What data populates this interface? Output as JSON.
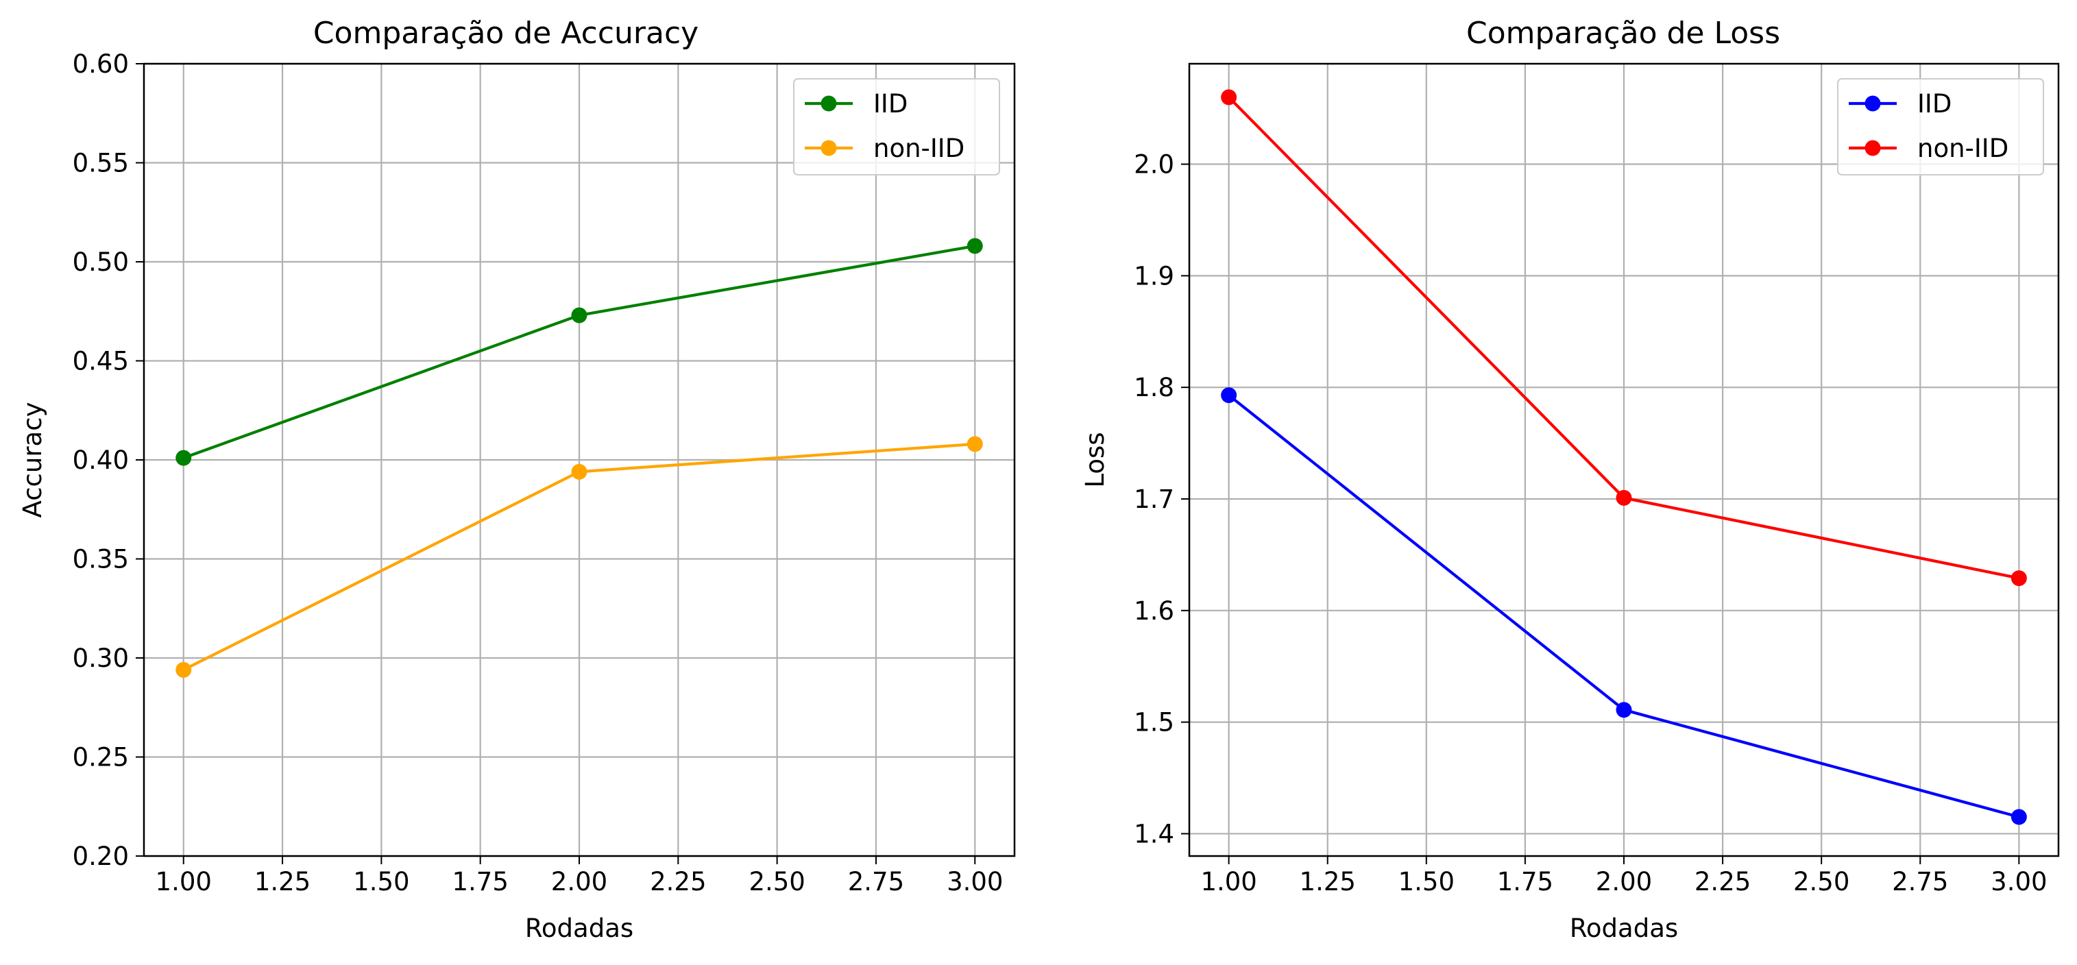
{
  "chart_data": [
    {
      "type": "line",
      "title": "Comparação de Accuracy",
      "xlabel": "Rodadas",
      "ylabel": "Accuracy",
      "xlim": [
        0.9,
        3.1
      ],
      "ylim": [
        0.2,
        0.6
      ],
      "x_ticks": [
        1.0,
        1.25,
        1.5,
        1.75,
        2.0,
        2.25,
        2.5,
        2.75,
        3.0
      ],
      "x_tick_labels": [
        "1.00",
        "1.25",
        "1.50",
        "1.75",
        "2.00",
        "2.25",
        "2.50",
        "2.75",
        "3.00"
      ],
      "y_ticks": [
        0.2,
        0.25,
        0.3,
        0.35,
        0.4,
        0.45,
        0.5,
        0.55,
        0.6
      ],
      "y_tick_labels": [
        "0.20",
        "0.25",
        "0.30",
        "0.35",
        "0.40",
        "0.45",
        "0.50",
        "0.55",
        "0.60"
      ],
      "grid": true,
      "legend_position": "top-right",
      "x": [
        1,
        2,
        3
      ],
      "series": [
        {
          "name": "IID",
          "values": [
            0.401,
            0.473,
            0.508
          ],
          "color": "#008000"
        },
        {
          "name": "non-IID",
          "values": [
            0.294,
            0.394,
            0.408
          ],
          "color": "#ffa500"
        }
      ]
    },
    {
      "type": "line",
      "title": "Comparação de Loss",
      "xlabel": "Rodadas",
      "ylabel": "Loss",
      "xlim": [
        0.9,
        3.1
      ],
      "ylim": [
        1.38,
        2.09
      ],
      "x_ticks": [
        1.0,
        1.25,
        1.5,
        1.75,
        2.0,
        2.25,
        2.5,
        2.75,
        3.0
      ],
      "x_tick_labels": [
        "1.00",
        "1.25",
        "1.50",
        "1.75",
        "2.00",
        "2.25",
        "2.50",
        "2.75",
        "3.00"
      ],
      "y_ticks": [
        1.4,
        1.5,
        1.6,
        1.7,
        1.8,
        1.9,
        2.0
      ],
      "y_tick_labels": [
        "1.4",
        "1.5",
        "1.6",
        "1.7",
        "1.8",
        "1.9",
        "2.0"
      ],
      "grid": true,
      "legend_position": "top-right",
      "x": [
        1,
        2,
        3
      ],
      "series": [
        {
          "name": "IID",
          "values": [
            1.793,
            1.511,
            1.415
          ],
          "color": "#0000ff"
        },
        {
          "name": "non-IID",
          "values": [
            2.06,
            1.701,
            1.629
          ],
          "color": "#ff0000"
        }
      ]
    }
  ]
}
